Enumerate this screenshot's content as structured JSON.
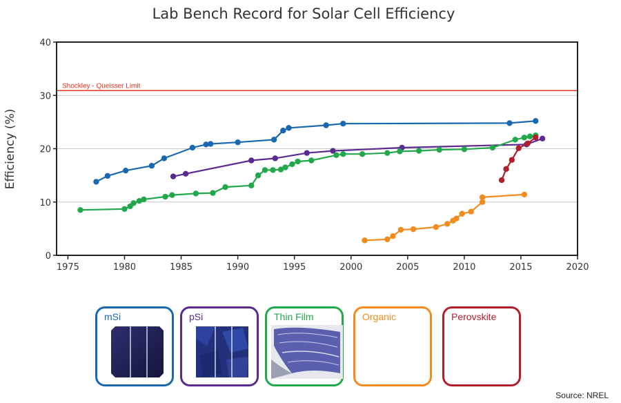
{
  "chart_data": {
    "type": "line",
    "title": "Lab Bench Record for Solar Cell Efficiency",
    "xlabel": "",
    "ylabel": "Efficiency (%)",
    "xlim": [
      1974,
      2020
    ],
    "ylim": [
      0,
      40
    ],
    "xticks": [
      1975,
      1980,
      1985,
      1990,
      1995,
      2000,
      2005,
      2010,
      2015,
      2020
    ],
    "yticks": [
      0,
      10,
      20,
      30,
      40
    ],
    "grid": "horizontal",
    "reference_line": {
      "label": "Shockley - Queisser Limit",
      "value": 30.9,
      "color": "#e8321e"
    },
    "series": [
      {
        "name": "mSi",
        "color": "#1a68b0",
        "x": [
          1977.5,
          1978.5,
          1980.1,
          1982.4,
          1983.5,
          1986.0,
          1987.2,
          1987.6,
          1990.0,
          1993.2,
          1994.0,
          1994.5,
          1997.8,
          1999.3,
          2014.0,
          2016.3
        ],
        "y": [
          13.8,
          14.9,
          15.9,
          16.8,
          18.2,
          20.2,
          20.8,
          20.9,
          21.2,
          21.7,
          23.4,
          23.9,
          24.4,
          24.7,
          24.8,
          25.2
        ]
      },
      {
        "name": "pSi",
        "color": "#5b2a91",
        "x": [
          1984.3,
          1985.4,
          1991.2,
          1993.3,
          1996.1,
          1998.4,
          2004.5,
          2015.5,
          2016.9
        ],
        "y": [
          14.8,
          15.3,
          17.8,
          18.2,
          19.2,
          19.6,
          20.2,
          20.8,
          21.9
        ]
      },
      {
        "name": "Thin Film",
        "color": "#22a84a",
        "x": [
          1976.1,
          1980.0,
          1980.5,
          1980.8,
          1981.3,
          1981.7,
          1983.6,
          1984.2,
          1986.3,
          1987.8,
          1988.9,
          1991.2,
          1991.8,
          1992.4,
          1993.1,
          1993.8,
          1994.2,
          1994.8,
          1995.3,
          1996.5,
          1998.7,
          1999.3,
          2001.0,
          2003.2,
          2004.3,
          2006.0,
          2007.8,
          2010.0,
          2012.5,
          2014.5,
          2015.3,
          2015.8,
          2016.3
        ],
        "y": [
          8.5,
          8.7,
          9.2,
          9.8,
          10.2,
          10.5,
          11.0,
          11.3,
          11.6,
          11.7,
          12.8,
          13.1,
          15.0,
          16.0,
          16.0,
          16.1,
          16.5,
          17.1,
          17.6,
          17.8,
          18.8,
          19.0,
          19.0,
          19.2,
          19.5,
          19.6,
          19.8,
          19.9,
          20.2,
          21.7,
          22.1,
          22.3,
          22.5
        ]
      },
      {
        "name": "Organic",
        "color": "#f28c1e",
        "x": [
          2001.2,
          2003.2,
          2003.7,
          2004.4,
          2005.5,
          2007.5,
          2008.5,
          2009.0,
          2009.3,
          2009.8,
          2010.6,
          2011.6,
          2011.6,
          2015.3
        ],
        "y": [
          2.8,
          3.0,
          3.6,
          4.8,
          4.9,
          5.3,
          5.9,
          6.5,
          6.9,
          7.8,
          8.2,
          10.0,
          10.9,
          11.4
        ]
      },
      {
        "name": "Perovskite",
        "color": "#b01f2b",
        "x": [
          2013.3,
          2013.7,
          2014.2,
          2014.8,
          2015.6,
          2016.3
        ],
        "y": [
          14.1,
          16.2,
          17.9,
          20.1,
          21.0,
          22.1
        ]
      }
    ],
    "legend": [
      {
        "label": "mSi",
        "color": "#1a68b0"
      },
      {
        "label": "pSi",
        "color": "#5b2a91"
      },
      {
        "label": "Thin Film",
        "color": "#22a84a"
      },
      {
        "label": "Organic",
        "color": "#f28c1e"
      },
      {
        "label": "Perovskite",
        "color": "#b01f2b"
      }
    ],
    "legend_position": "bottom"
  },
  "source": "Source: NREL"
}
